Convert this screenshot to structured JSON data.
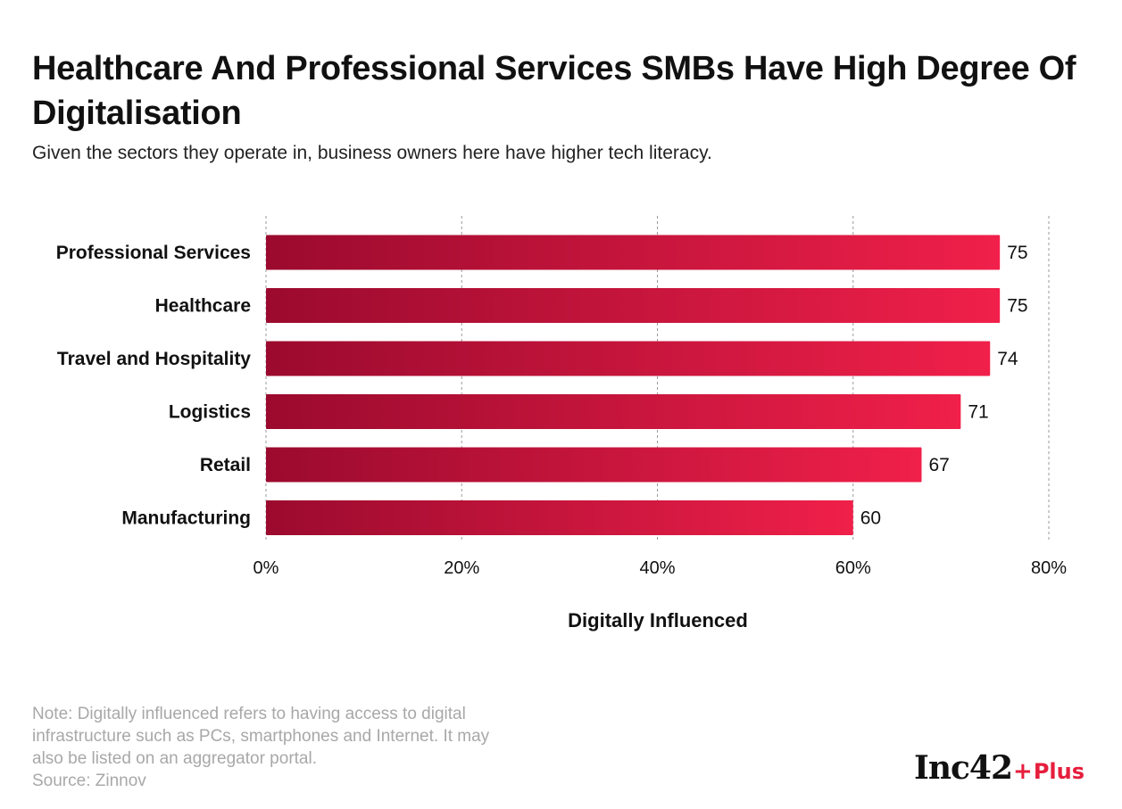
{
  "title": "Healthcare And Professional Services SMBs Have High Degree Of Digitalisation",
  "subtitle": "Given the sectors they operate in, business owners here have higher tech literacy.",
  "note_lines": [
    "Note: Digitally influenced refers to having access to digital",
    "infrastructure such as PCs, smartphones and Internet. It may",
    "also be listed on an aggregator portal.",
    "Source: Zinnov"
  ],
  "logo": {
    "main": "Inc42",
    "plus_sign": "+",
    "sub": "Plus"
  },
  "colors": {
    "bar_start": "#9b0a2e",
    "bar_end": "#f0204a",
    "grid": "#9a9a9a"
  },
  "chart_data": {
    "type": "bar",
    "orientation": "horizontal",
    "categories": [
      "Professional Services",
      "Healthcare",
      "Travel and Hospitality",
      "Logistics",
      "Retail",
      "Manufacturing"
    ],
    "values": [
      75,
      75,
      74,
      71,
      67,
      60
    ],
    "data_labels": [
      "75",
      "75",
      "74",
      "71",
      "67",
      "60"
    ],
    "xlabel": "Digitally Influenced",
    "ylabel": "",
    "xlim": [
      0,
      80
    ],
    "xticks": [
      0,
      20,
      40,
      60,
      80
    ],
    "xtick_labels": [
      "0%",
      "20%",
      "40%",
      "60%",
      "80%"
    ],
    "grid": "vertical dashed"
  }
}
